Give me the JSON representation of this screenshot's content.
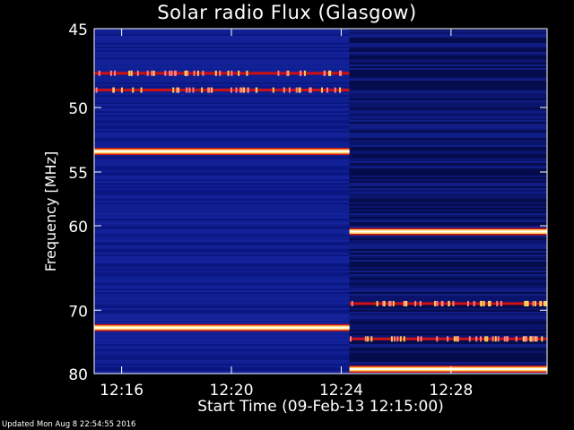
{
  "chart_data": {
    "type": "heatmap",
    "title": "Solar radio Flux (Glasgow)",
    "xlabel": "Start Time (09-Feb-13 12:15:00)",
    "ylabel": "Frequency [MHz]",
    "x_ticks": [
      "12:16",
      "12:20",
      "12:24",
      "12:28"
    ],
    "x_tick_minutes": [
      1,
      5,
      9,
      13
    ],
    "x_range_minutes": [
      0,
      16.5
    ],
    "y_ticks": [
      45,
      50,
      55,
      60,
      70,
      80
    ],
    "y_range_mhz": [
      45,
      80
    ],
    "y_scale": "reciprocal",
    "segment_split_minute": 9.3,
    "emission_lines": [
      {
        "freq_mhz": 47.7,
        "x_from": 0,
        "x_to": 9.3,
        "intensity": "medium"
      },
      {
        "freq_mhz": 48.8,
        "x_from": 0,
        "x_to": 9.3,
        "intensity": "medium"
      },
      {
        "freq_mhz": 53.3,
        "x_from": 0,
        "x_to": 9.3,
        "intensity": "high"
      },
      {
        "freq_mhz": 72.5,
        "x_from": 0,
        "x_to": 9.3,
        "intensity": "high"
      },
      {
        "freq_mhz": 60.6,
        "x_from": 9.3,
        "x_to": 16.5,
        "intensity": "high"
      },
      {
        "freq_mhz": 69.1,
        "x_from": 9.3,
        "x_to": 16.5,
        "intensity": "medium"
      },
      {
        "freq_mhz": 74.2,
        "x_from": 9.3,
        "x_to": 16.5,
        "intensity": "medium"
      },
      {
        "freq_mhz": 79.2,
        "x_from": 9.3,
        "x_to": 16.5,
        "intensity": "high"
      }
    ],
    "grid": false,
    "colormap": [
      "#000060",
      "#1a2aa8",
      "#d01010",
      "#ffd060",
      "#fffff0"
    ]
  },
  "footer": {
    "updated_text": "Updated Mon Aug  8 22:54:55 2016"
  }
}
